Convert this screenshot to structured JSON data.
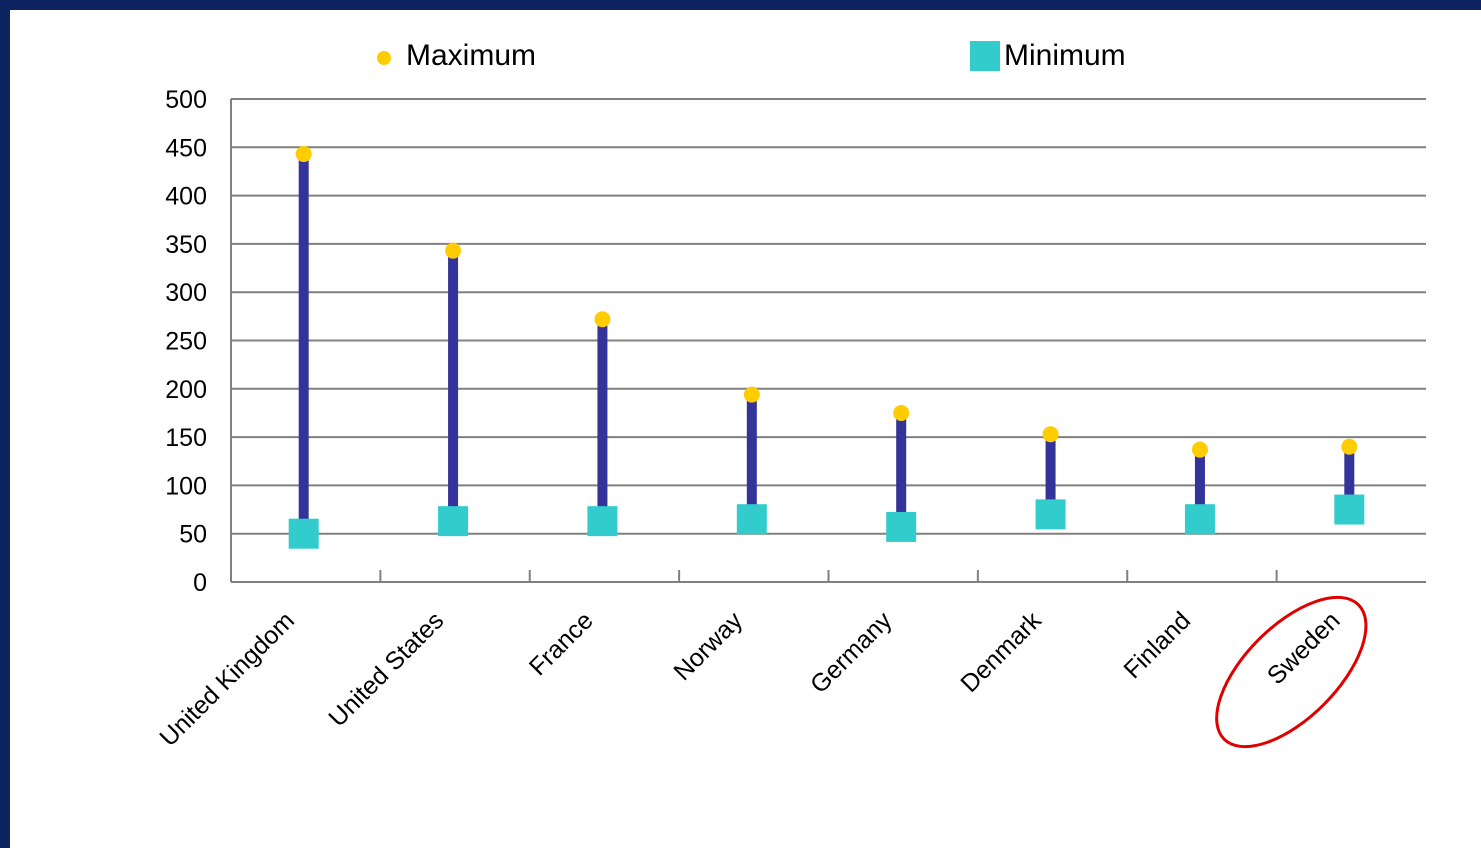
{
  "chart_data": {
    "type": "scatter",
    "title": "",
    "xlabel": "",
    "ylabel": "",
    "ylim": [
      0,
      500
    ],
    "yticks": [
      0,
      50,
      100,
      150,
      200,
      250,
      300,
      350,
      400,
      450,
      500
    ],
    "grid": true,
    "legend_position": "top",
    "categories": [
      "United Kingdom",
      "United States",
      "France",
      "Norway",
      "Germany",
      "Denmark",
      "Finland",
      "Sweden"
    ],
    "series": [
      {
        "name": "Maximum",
        "marker": "circle",
        "color": "#ffcc00",
        "values": [
          443,
          343,
          272,
          194,
          175,
          153,
          137,
          140
        ]
      },
      {
        "name": "Minimum",
        "marker": "square",
        "color": "#33cccc",
        "values": [
          50,
          63,
          63,
          65,
          57,
          70,
          65,
          75
        ]
      }
    ],
    "range_line_color": "#333399",
    "highlighted_category": "Sweden",
    "highlight_color": "#e00000"
  }
}
